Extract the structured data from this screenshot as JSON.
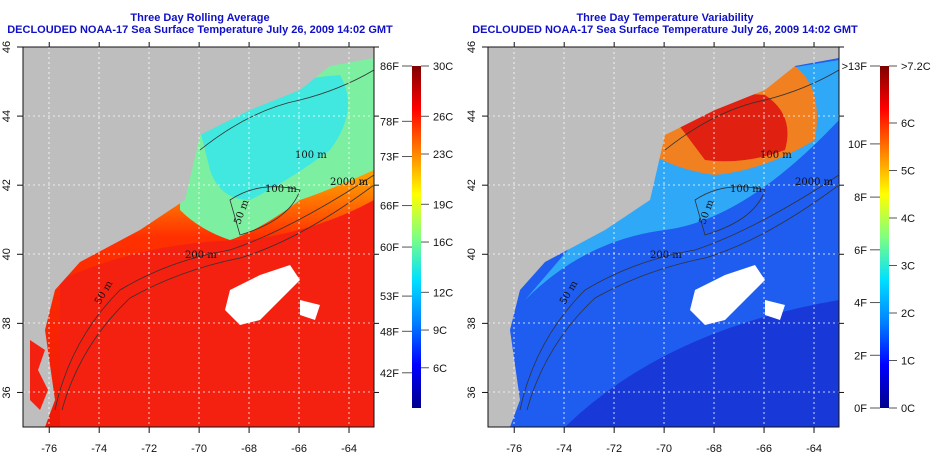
{
  "panels": [
    {
      "title_line1": "Three Day Rolling Average",
      "title_line2": "DECLOUDED NOAA-17 Sea Surface Temperature July 26, 2009 14:02 GMT",
      "colorbar": {
        "range_c": [
          2.8,
          30
        ],
        "left_labels": [
          {
            "text": "86F",
            "value_c": 30
          },
          {
            "text": "78F",
            "value_c": 25.6
          },
          {
            "text": "73F",
            "value_c": 22.8
          },
          {
            "text": "66F",
            "value_c": 18.9
          },
          {
            "text": "60F",
            "value_c": 15.6
          },
          {
            "text": "53F",
            "value_c": 11.7
          },
          {
            "text": "48F",
            "value_c": 8.9
          },
          {
            "text": "42F",
            "value_c": 5.6
          }
        ],
        "right_labels": [
          {
            "text": "30C",
            "value_c": 30
          },
          {
            "text": "26C",
            "value_c": 26
          },
          {
            "text": "23C",
            "value_c": 23
          },
          {
            "text": "19C",
            "value_c": 19
          },
          {
            "text": "16C",
            "value_c": 16
          },
          {
            "text": "12C",
            "value_c": 12
          },
          {
            "text": "9C",
            "value_c": 9
          },
          {
            "text": "6C",
            "value_c": 6
          }
        ],
        "stops": [
          "#00008c",
          "#0000ff",
          "#0080ff",
          "#00e0ff",
          "#80ff80",
          "#ffff00",
          "#ff8000",
          "#ff0000",
          "#800000"
        ]
      },
      "contour_labels": [
        "100 m",
        "2000 m",
        "100 m",
        "50 m",
        "200 m",
        "50 m"
      ]
    },
    {
      "title_line1": "Three Day Temperature Variability",
      "title_line2": "DECLOUDED NOAA-17 Sea Surface Temperature July 26, 2009 14:02 GMT",
      "colorbar": {
        "range_c": [
          0,
          7.2
        ],
        "left_labels": [
          {
            "text": ">13F",
            "value_c": 7.2
          },
          {
            "text": "10F",
            "value_c": 5.56
          },
          {
            "text": "8F",
            "value_c": 4.44
          },
          {
            "text": "6F",
            "value_c": 3.33
          },
          {
            "text": "4F",
            "value_c": 2.22
          },
          {
            "text": "2F",
            "value_c": 1.11
          },
          {
            "text": "0F",
            "value_c": 0
          }
        ],
        "right_labels": [
          {
            "text": ">7.2C",
            "value_c": 7.2
          },
          {
            "text": "6C",
            "value_c": 6
          },
          {
            "text": "5C",
            "value_c": 5
          },
          {
            "text": "4C",
            "value_c": 4
          },
          {
            "text": "3C",
            "value_c": 3
          },
          {
            "text": "2C",
            "value_c": 2
          },
          {
            "text": "1C",
            "value_c": 1
          },
          {
            "text": "0C",
            "value_c": 0
          }
        ],
        "stops": [
          "#00008c",
          "#0000ff",
          "#0080ff",
          "#00e0ff",
          "#80ff80",
          "#ffff00",
          "#ff8000",
          "#ff0000",
          "#800000"
        ]
      },
      "contour_labels": [
        "100 m",
        "2000 m",
        "100 m",
        "50 m",
        "200 m",
        "50 m"
      ]
    }
  ],
  "axes": {
    "lon_ticks": [
      "-76",
      "-74",
      "-72",
      "-70",
      "-68",
      "-66",
      "-64"
    ],
    "lon_values": [
      -76,
      -74,
      -72,
      -70,
      -68,
      -66,
      -64
    ],
    "lat_ticks": [
      "46",
      "44",
      "42",
      "40",
      "38",
      "36"
    ],
    "lat_values": [
      46,
      44,
      42,
      40,
      38,
      36
    ],
    "lon_range": [
      -77.05,
      -63
    ],
    "lat_range": [
      35,
      46
    ]
  },
  "colors": {
    "land": "#bebebe",
    "title": "#1010c8",
    "cloud": "#ffffff"
  }
}
